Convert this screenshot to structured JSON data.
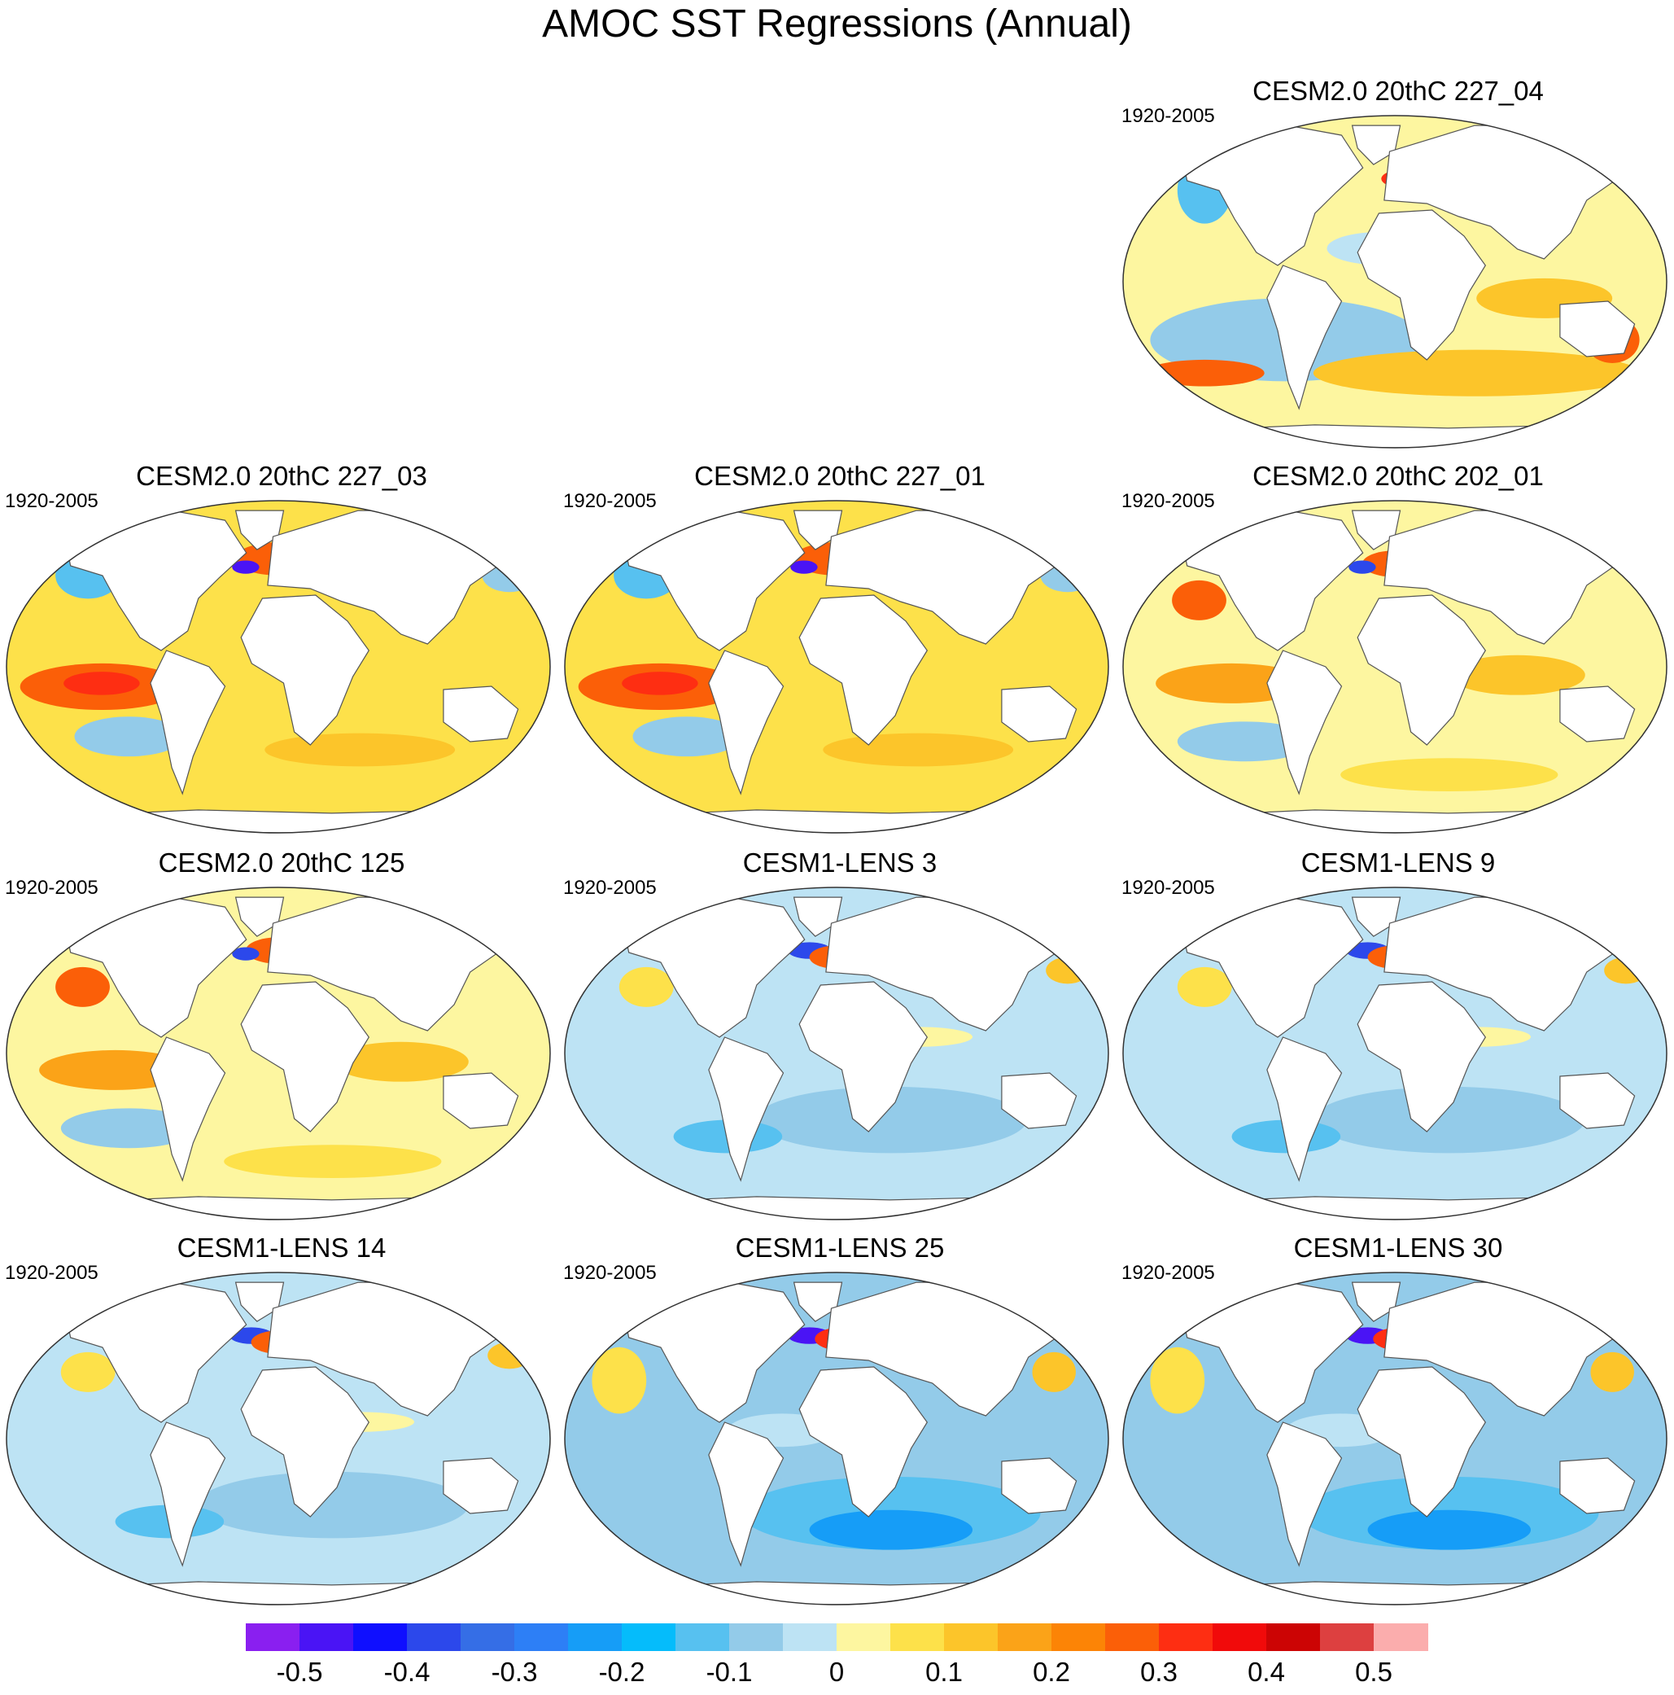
{
  "title": "AMOC SST Regressions (Annual)",
  "map_projection": "robinson",
  "panels": [
    {
      "title": "CESM2.0 20thC 227_04",
      "period": "1920-2005",
      "pattern": "warm-south"
    },
    {
      "title": "CESM2.0 20thC 227_03",
      "period": "1920-2005",
      "pattern": "warm"
    },
    {
      "title": "CESM2.0 20thC 227_01",
      "period": "1920-2005",
      "pattern": "warm"
    },
    {
      "title": "CESM2.0 20thC 202_01",
      "period": "1920-2005",
      "pattern": "warm-weak"
    },
    {
      "title": "CESM2.0 20thC 125",
      "period": "1920-2005",
      "pattern": "warm-weak"
    },
    {
      "title": "CESM1-LENS 3",
      "period": "1920-2005",
      "pattern": "cool"
    },
    {
      "title": "CESM1-LENS 9",
      "period": "1920-2005",
      "pattern": "cool"
    },
    {
      "title": "CESM1-LENS 14",
      "period": "1920-2005",
      "pattern": "cool"
    },
    {
      "title": "CESM1-LENS 25",
      "period": "1920-2005",
      "pattern": "cool-strong"
    },
    {
      "title": "CESM1-LENS 30",
      "period": "1920-2005",
      "pattern": "cool-strong"
    }
  ],
  "colorbar": {
    "colors": [
      "#8a1ff0",
      "#4a14f5",
      "#0f0fff",
      "#2c48eb",
      "#356ee6",
      "#2d7ff6",
      "#169df7",
      "#05bcfb",
      "#57c1f0",
      "#93cbe9",
      "#bde3f4",
      "#fdf6a0",
      "#fde14a",
      "#fcc52a",
      "#fba318",
      "#fc8406",
      "#fb5f08",
      "#fe2e12",
      "#f10a0a",
      "#cc0404",
      "#dd4040",
      "#fbadad"
    ],
    "tick_labels": [
      "-0.5",
      "-0.4",
      "-0.3",
      "-0.2",
      "-0.1",
      "0",
      "0.1",
      "0.2",
      "0.3",
      "0.4",
      "0.5"
    ]
  }
}
